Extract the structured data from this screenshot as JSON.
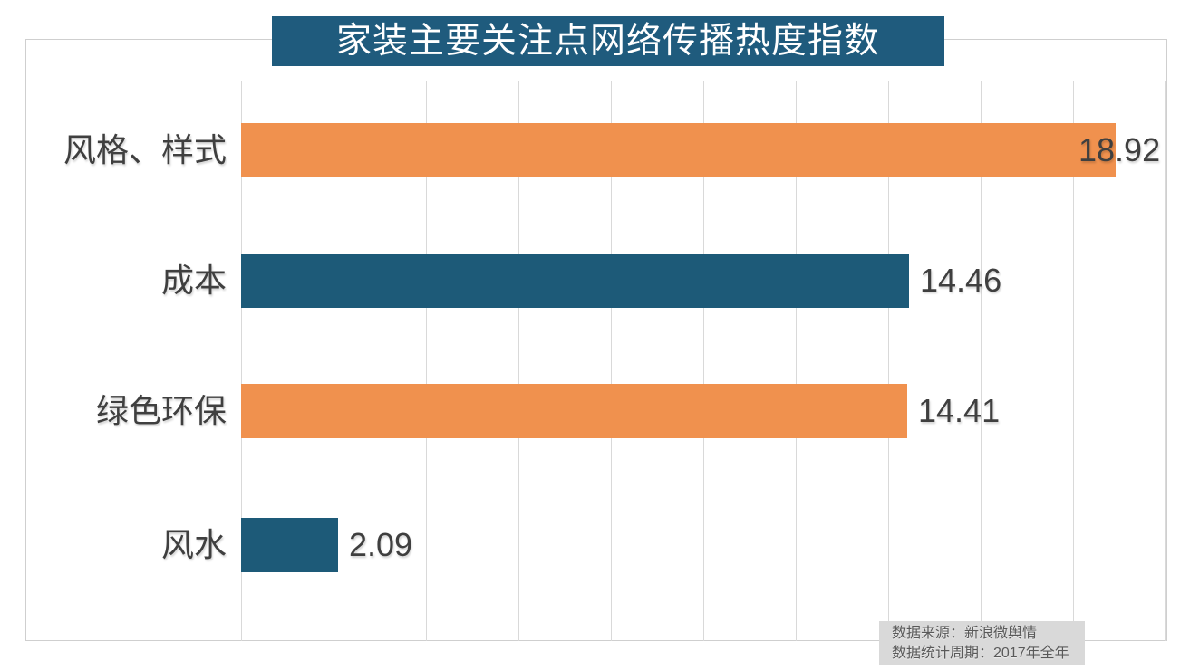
{
  "title": "家装主要关注点网络传播热度指数",
  "chart_data": {
    "type": "bar",
    "orientation": "horizontal",
    "title": "家装主要关注点网络传播热度指数",
    "categories": [
      "风格、样式",
      "成本",
      "绿色环保",
      "风水"
    ],
    "values": [
      18.92,
      14.46,
      14.41,
      2.09
    ],
    "value_labels": [
      "18.92",
      "14.46",
      "14.41",
      "2.09"
    ],
    "bar_colors": [
      "#f0914e",
      "#1d5a78",
      "#f0914e",
      "#1d5a78"
    ],
    "xlim": [
      0,
      20
    ],
    "gridline_step": 2,
    "grid": true,
    "legend": false,
    "xlabel": "",
    "ylabel": ""
  },
  "colors": {
    "banner_bg": "#1f5b7d",
    "orange_bar": "#f0914e",
    "blue_bar": "#1d5a78",
    "gridline": "#d9d9d9",
    "frame_border": "#cfcfcf",
    "label_text": "#3f3f3f",
    "source_bg": "#d9d9d9",
    "source_text": "#595959"
  },
  "source": {
    "line1": "数据来源：新浪微舆情",
    "line2": "数据统计周期：2017年全年"
  }
}
